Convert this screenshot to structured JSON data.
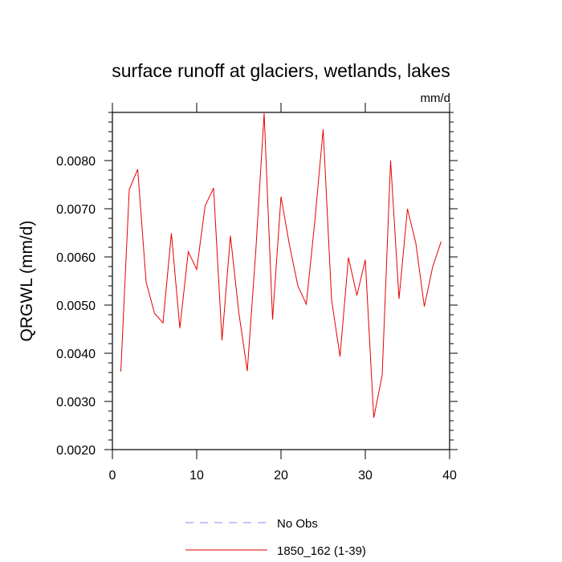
{
  "chart_data": {
    "type": "line",
    "title": "surface runoff at glaciers, wetlands, lakes",
    "units": "mm/d",
    "ylabel": "QRGWL  (mm/d)",
    "xlabel": "",
    "xlim": [
      0,
      40
    ],
    "ylim": [
      0.002,
      0.009
    ],
    "x_ticks": [
      0,
      10,
      20,
      30,
      40
    ],
    "x_tick_labels": [
      "0",
      "10",
      "20",
      "30",
      "40"
    ],
    "y_ticks": [
      0.002,
      0.003,
      0.004,
      0.005,
      0.006,
      0.007,
      0.008
    ],
    "y_tick_labels": [
      "0.0020",
      "0.0030",
      "0.0040",
      "0.0050",
      "0.0060",
      "0.0070",
      "0.0080"
    ],
    "grid": false,
    "legend_position": "bottom",
    "series": [
      {
        "name": "No Obs",
        "color": "#8a8ae6",
        "style": "dashed",
        "values": []
      },
      {
        "name": "1850_162 (1-39)",
        "color": "#e60000",
        "style": "solid",
        "x": [
          1,
          2,
          3,
          4,
          5,
          6,
          7,
          8,
          9,
          10,
          11,
          12,
          13,
          14,
          15,
          16,
          17,
          18,
          19,
          20,
          21,
          22,
          23,
          24,
          25,
          26,
          27,
          28,
          29,
          30,
          31,
          32,
          33,
          34,
          35,
          36,
          37,
          38,
          39
        ],
        "values": [
          0.00362,
          0.0074,
          0.00782,
          0.00548,
          0.00483,
          0.00463,
          0.00649,
          0.00452,
          0.00611,
          0.00574,
          0.00706,
          0.00743,
          0.00427,
          0.00644,
          0.00484,
          0.00363,
          0.0061,
          0.00898,
          0.0047,
          0.00725,
          0.00625,
          0.0054,
          0.00502,
          0.00672,
          0.00865,
          0.00511,
          0.00393,
          0.00599,
          0.0052,
          0.00594,
          0.00266,
          0.00354,
          0.008,
          0.00513,
          0.007,
          0.00628,
          0.00497,
          0.0058,
          0.00632
        ]
      }
    ]
  }
}
